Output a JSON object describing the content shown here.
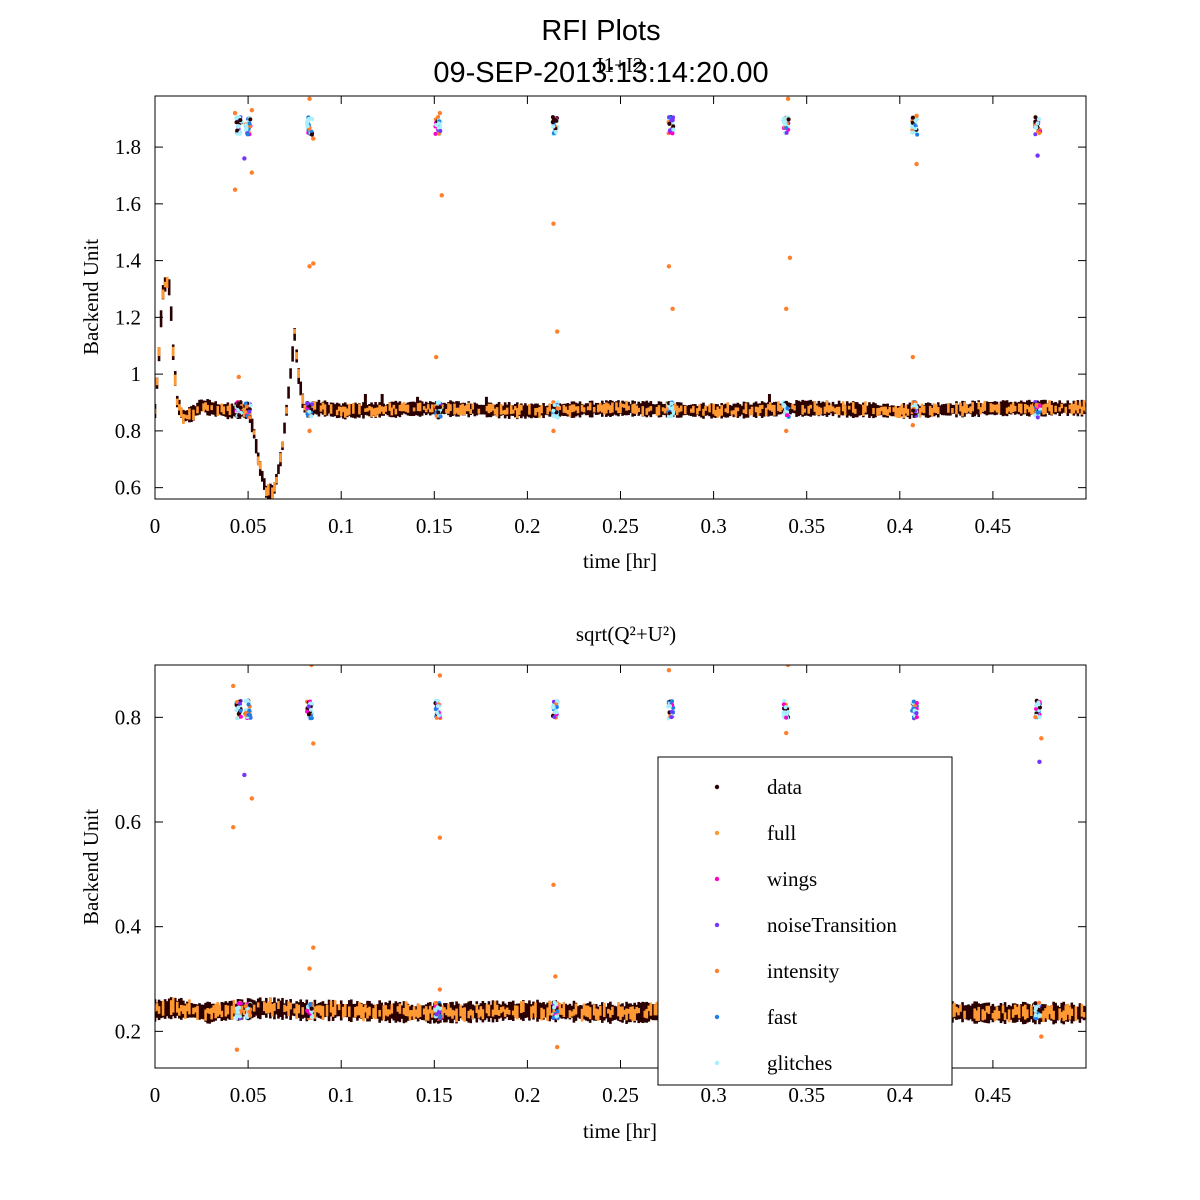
{
  "figure": {
    "title": "RFI Plots",
    "subtitle": "09-SEP-2013:13:14:20.00",
    "overlay_label": "I1+I2"
  },
  "colors": {
    "data": "#2a0000",
    "full": "#ff9933",
    "wings": "#ff00cc",
    "noiseTransition": "#7733ff",
    "intensity": "#ff7f2a",
    "fast": "#1f7fe6",
    "glitches": "#a6f0ff"
  },
  "legend": {
    "entries": [
      {
        "key": "data",
        "label": "data"
      },
      {
        "key": "full",
        "label": "full"
      },
      {
        "key": "wings",
        "label": "wings"
      },
      {
        "key": "noiseTransition",
        "label": "noiseTransition"
      },
      {
        "key": "intensity",
        "label": "intensity"
      },
      {
        "key": "fast",
        "label": "fast"
      },
      {
        "key": "glitches",
        "label": "glitches"
      }
    ]
  },
  "chart_data": [
    {
      "type": "scatter",
      "title": "",
      "xlabel": "time [hr]",
      "ylabel": "Backend Unit",
      "xlim": [
        0,
        0.5
      ],
      "ylim": [
        0.56,
        1.98
      ],
      "xticks": [
        0,
        0.05,
        0.1,
        0.15,
        0.2,
        0.25,
        0.3,
        0.35,
        0.4,
        0.45
      ],
      "xtick_labels": [
        "0",
        "0.05",
        "0.1",
        "0.15",
        "0.2",
        "0.25",
        "0.3",
        "0.35",
        "0.4",
        "0.45"
      ],
      "yticks": [
        0.6,
        0.8,
        1.0,
        1.2,
        1.4,
        1.6,
        1.8
      ],
      "ytick_labels": [
        "0.6",
        "0.8",
        "1",
        "1.2",
        "1.4",
        "1.6",
        "1.8"
      ],
      "baseline": [
        [
          0,
          0.87
        ],
        [
          0.002,
          1.05
        ],
        [
          0.004,
          1.28
        ],
        [
          0.006,
          1.33
        ],
        [
          0.008,
          1.3
        ],
        [
          0.01,
          1.05
        ],
        [
          0.012,
          0.9
        ],
        [
          0.015,
          0.85
        ],
        [
          0.02,
          0.86
        ],
        [
          0.025,
          0.89
        ],
        [
          0.03,
          0.88
        ],
        [
          0.04,
          0.87
        ],
        [
          0.05,
          0.87
        ],
        [
          0.053,
          0.8
        ],
        [
          0.056,
          0.68
        ],
        [
          0.06,
          0.58
        ],
        [
          0.064,
          0.59
        ],
        [
          0.068,
          0.72
        ],
        [
          0.072,
          0.95
        ],
        [
          0.075,
          1.14
        ],
        [
          0.077,
          1.0
        ],
        [
          0.08,
          0.88
        ],
        [
          0.09,
          0.88
        ],
        [
          0.1,
          0.87
        ],
        [
          0.15,
          0.88
        ],
        [
          0.2,
          0.87
        ],
        [
          0.25,
          0.88
        ],
        [
          0.3,
          0.87
        ],
        [
          0.35,
          0.88
        ],
        [
          0.4,
          0.87
        ],
        [
          0.45,
          0.88
        ],
        [
          0.5,
          0.88
        ]
      ],
      "band_halfwidth": 0.025,
      "spikes": [
        {
          "x": 0.113,
          "y": 0.93
        },
        {
          "x": 0.122,
          "y": 0.93
        },
        {
          "x": 0.141,
          "y": 0.92
        },
        {
          "x": 0.178,
          "y": 0.92
        },
        {
          "x": 0.33,
          "y": 0.93
        }
      ],
      "calibration_x": [
        0.045,
        0.05,
        0.083,
        0.152,
        0.215,
        0.277,
        0.339,
        0.408,
        0.474
      ],
      "calibration_high": 1.875,
      "calibration_low": 0.875,
      "outliers": [
        {
          "x": 0.043,
          "y": 1.92,
          "flag": "intensity"
        },
        {
          "x": 0.043,
          "y": 1.65,
          "flag": "intensity"
        },
        {
          "x": 0.045,
          "y": 0.99,
          "flag": "intensity"
        },
        {
          "x": 0.048,
          "y": 1.76,
          "flag": "noiseTransition"
        },
        {
          "x": 0.052,
          "y": 1.71,
          "flag": "intensity"
        },
        {
          "x": 0.052,
          "y": 1.93,
          "flag": "intensity"
        },
        {
          "x": 0.083,
          "y": 1.97,
          "flag": "intensity"
        },
        {
          "x": 0.083,
          "y": 1.38,
          "flag": "intensity"
        },
        {
          "x": 0.085,
          "y": 1.39,
          "flag": "intensity"
        },
        {
          "x": 0.085,
          "y": 1.83,
          "flag": "intensity"
        },
        {
          "x": 0.083,
          "y": 0.8,
          "flag": "intensity"
        },
        {
          "x": 0.151,
          "y": 1.06,
          "flag": "intensity"
        },
        {
          "x": 0.154,
          "y": 1.63,
          "flag": "intensity"
        },
        {
          "x": 0.153,
          "y": 1.92,
          "flag": "intensity"
        },
        {
          "x": 0.214,
          "y": 1.53,
          "flag": "intensity"
        },
        {
          "x": 0.216,
          "y": 1.15,
          "flag": "intensity"
        },
        {
          "x": 0.214,
          "y": 0.8,
          "flag": "intensity"
        },
        {
          "x": 0.276,
          "y": 1.38,
          "flag": "intensity"
        },
        {
          "x": 0.278,
          "y": 1.23,
          "flag": "intensity"
        },
        {
          "x": 0.339,
          "y": 1.23,
          "flag": "intensity"
        },
        {
          "x": 0.341,
          "y": 1.41,
          "flag": "intensity"
        },
        {
          "x": 0.34,
          "y": 1.97,
          "flag": "intensity"
        },
        {
          "x": 0.339,
          "y": 0.8,
          "flag": "intensity"
        },
        {
          "x": 0.407,
          "y": 1.06,
          "flag": "intensity"
        },
        {
          "x": 0.409,
          "y": 1.74,
          "flag": "intensity"
        },
        {
          "x": 0.409,
          "y": 1.91,
          "flag": "intensity"
        },
        {
          "x": 0.407,
          "y": 0.82,
          "flag": "intensity"
        },
        {
          "x": 0.474,
          "y": 1.77,
          "flag": "noiseTransition"
        }
      ]
    },
    {
      "type": "scatter",
      "title": "sqrt(Q²+U²)",
      "xlabel": "time [hr]",
      "ylabel": "Backend Unit",
      "xlim": [
        0,
        0.5
      ],
      "ylim": [
        0.13,
        0.9
      ],
      "xticks": [
        0,
        0.05,
        0.1,
        0.15,
        0.2,
        0.25,
        0.3,
        0.35,
        0.4,
        0.45
      ],
      "xtick_labels": [
        "0",
        "0.05",
        "0.1",
        "0.15",
        "0.2",
        "0.25",
        "0.3",
        "0.35",
        "0.4",
        "0.45"
      ],
      "yticks": [
        0.2,
        0.4,
        0.6,
        0.8
      ],
      "ytick_labels": [
        "0.2",
        "0.4",
        "0.6",
        "0.8"
      ],
      "baseline": [
        [
          0,
          0.24
        ],
        [
          0.01,
          0.245
        ],
        [
          0.02,
          0.24
        ],
        [
          0.03,
          0.235
        ],
        [
          0.04,
          0.24
        ],
        [
          0.06,
          0.245
        ],
        [
          0.08,
          0.24
        ],
        [
          0.1,
          0.24
        ],
        [
          0.15,
          0.235
        ],
        [
          0.2,
          0.24
        ],
        [
          0.25,
          0.235
        ],
        [
          0.3,
          0.24
        ],
        [
          0.35,
          0.235
        ],
        [
          0.4,
          0.24
        ],
        [
          0.45,
          0.235
        ],
        [
          0.5,
          0.235
        ]
      ],
      "band_halfwidth": 0.018,
      "spikes": [],
      "calibration_x": [
        0.045,
        0.05,
        0.083,
        0.152,
        0.215,
        0.277,
        0.339,
        0.408,
        0.474
      ],
      "calibration_high": 0.815,
      "calibration_low": 0.24,
      "outliers": [
        {
          "x": 0.042,
          "y": 0.86,
          "flag": "intensity"
        },
        {
          "x": 0.042,
          "y": 0.59,
          "flag": "intensity"
        },
        {
          "x": 0.048,
          "y": 0.69,
          "flag": "noiseTransition"
        },
        {
          "x": 0.052,
          "y": 0.645,
          "flag": "intensity"
        },
        {
          "x": 0.044,
          "y": 0.165,
          "flag": "intensity"
        },
        {
          "x": 0.084,
          "y": 0.9,
          "flag": "intensity"
        },
        {
          "x": 0.085,
          "y": 0.36,
          "flag": "intensity"
        },
        {
          "x": 0.083,
          "y": 0.32,
          "flag": "intensity"
        },
        {
          "x": 0.085,
          "y": 0.75,
          "flag": "intensity"
        },
        {
          "x": 0.153,
          "y": 0.57,
          "flag": "intensity"
        },
        {
          "x": 0.153,
          "y": 0.88,
          "flag": "intensity"
        },
        {
          "x": 0.153,
          "y": 0.28,
          "flag": "intensity"
        },
        {
          "x": 0.214,
          "y": 0.48,
          "flag": "intensity"
        },
        {
          "x": 0.215,
          "y": 0.305,
          "flag": "intensity"
        },
        {
          "x": 0.216,
          "y": 0.17,
          "flag": "intensity"
        },
        {
          "x": 0.276,
          "y": 0.89,
          "flag": "intensity"
        },
        {
          "x": 0.34,
          "y": 0.9,
          "flag": "intensity"
        },
        {
          "x": 0.339,
          "y": 0.77,
          "flag": "intensity"
        },
        {
          "x": 0.475,
          "y": 0.715,
          "flag": "noiseTransition"
        },
        {
          "x": 0.476,
          "y": 0.76,
          "flag": "intensity"
        },
        {
          "x": 0.476,
          "y": 0.19,
          "flag": "intensity"
        }
      ]
    }
  ]
}
